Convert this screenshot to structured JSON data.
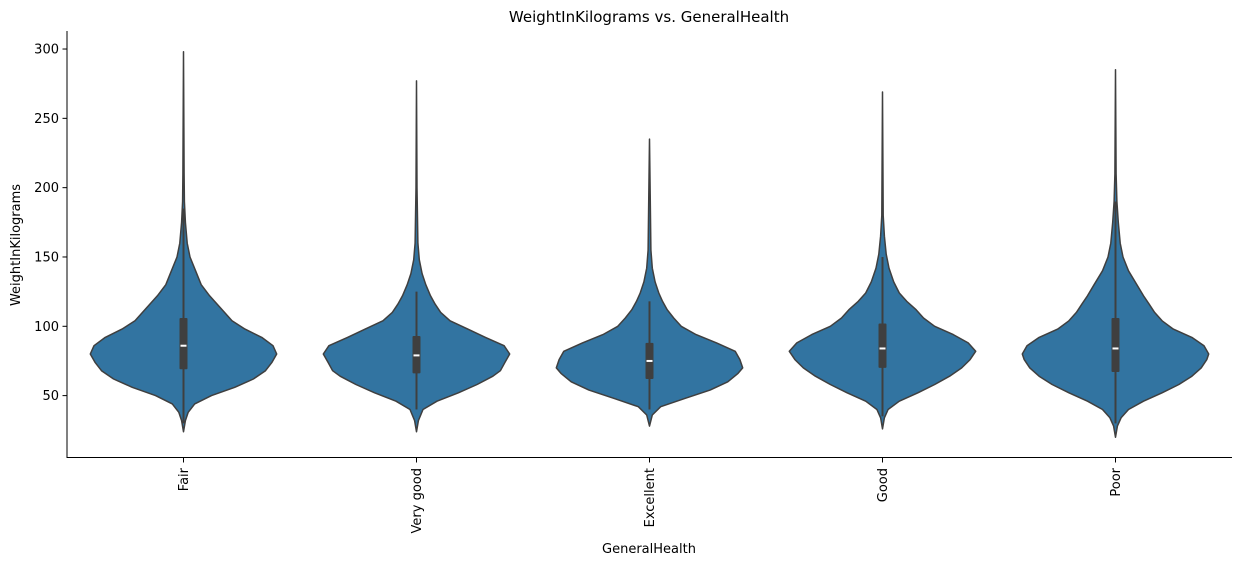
{
  "chart_data": {
    "type": "violin",
    "title": "WeightInKilograms vs. GeneralHealth",
    "xlabel": "GeneralHealth",
    "ylabel": "WeightInKilograms",
    "categories": [
      "Fair",
      "Very good",
      "Excellent",
      "Good",
      "Poor"
    ],
    "ylim": [
      5,
      313
    ],
    "yticks": [
      50,
      100,
      150,
      200,
      250,
      300
    ],
    "yticklabels": [
      "50",
      "100",
      "150",
      "200",
      "250",
      "300"
    ],
    "grid": false,
    "color": "#3274a1",
    "edge_color": "#3f3f3f",
    "violins": [
      {
        "category": "Fair",
        "min": 24,
        "max": 298,
        "q1": 69,
        "median": 86,
        "q3": 106,
        "whisker_low": 30,
        "whisker_high": 185,
        "density": [
          [
            24,
            0
          ],
          [
            32,
            0.02
          ],
          [
            38,
            0.05
          ],
          [
            44,
            0.12
          ],
          [
            50,
            0.3
          ],
          [
            56,
            0.55
          ],
          [
            62,
            0.75
          ],
          [
            68,
            0.88
          ],
          [
            74,
            0.95
          ],
          [
            80,
            1.0
          ],
          [
            86,
            0.96
          ],
          [
            92,
            0.84
          ],
          [
            98,
            0.66
          ],
          [
            104,
            0.52
          ],
          [
            110,
            0.44
          ],
          [
            116,
            0.36
          ],
          [
            122,
            0.28
          ],
          [
            130,
            0.19
          ],
          [
            140,
            0.13
          ],
          [
            150,
            0.07
          ],
          [
            160,
            0.04
          ],
          [
            175,
            0.02
          ],
          [
            190,
            0.01
          ],
          [
            210,
            0.006
          ],
          [
            298,
            0
          ]
        ]
      },
      {
        "category": "Very good",
        "min": 24,
        "max": 277,
        "q1": 66,
        "median": 79,
        "q3": 93,
        "whisker_low": 40,
        "whisker_high": 125,
        "density": [
          [
            24,
            0
          ],
          [
            32,
            0.02
          ],
          [
            40,
            0.07
          ],
          [
            46,
            0.22
          ],
          [
            52,
            0.45
          ],
          [
            58,
            0.65
          ],
          [
            64,
            0.82
          ],
          [
            68,
            0.9
          ],
          [
            74,
            0.95
          ],
          [
            80,
            1.0
          ],
          [
            86,
            0.94
          ],
          [
            92,
            0.74
          ],
          [
            98,
            0.55
          ],
          [
            104,
            0.36
          ],
          [
            110,
            0.26
          ],
          [
            116,
            0.2
          ],
          [
            122,
            0.15
          ],
          [
            130,
            0.1
          ],
          [
            138,
            0.06
          ],
          [
            148,
            0.03
          ],
          [
            160,
            0.015
          ],
          [
            200,
            0.005
          ],
          [
            277,
            0
          ]
        ]
      },
      {
        "category": "Excellent",
        "min": 28,
        "max": 235,
        "q1": 62,
        "median": 75,
        "q3": 88,
        "whisker_low": 40,
        "whisker_high": 118,
        "density": [
          [
            28,
            0
          ],
          [
            36,
            0.03
          ],
          [
            42,
            0.12
          ],
          [
            48,
            0.38
          ],
          [
            54,
            0.65
          ],
          [
            60,
            0.84
          ],
          [
            66,
            0.95
          ],
          [
            70,
            1.0
          ],
          [
            76,
            0.97
          ],
          [
            82,
            0.92
          ],
          [
            88,
            0.72
          ],
          [
            94,
            0.5
          ],
          [
            100,
            0.34
          ],
          [
            106,
            0.26
          ],
          [
            112,
            0.19
          ],
          [
            118,
            0.14
          ],
          [
            124,
            0.1
          ],
          [
            132,
            0.06
          ],
          [
            142,
            0.03
          ],
          [
            155,
            0.015
          ],
          [
            235,
            0
          ]
        ]
      },
      {
        "category": "Good",
        "min": 26,
        "max": 269,
        "q1": 70,
        "median": 84,
        "q3": 102,
        "whisker_low": 35,
        "whisker_high": 150,
        "density": [
          [
            26,
            0
          ],
          [
            34,
            0.02
          ],
          [
            40,
            0.06
          ],
          [
            46,
            0.18
          ],
          [
            52,
            0.38
          ],
          [
            58,
            0.56
          ],
          [
            64,
            0.72
          ],
          [
            70,
            0.85
          ],
          [
            76,
            0.94
          ],
          [
            82,
            1.0
          ],
          [
            88,
            0.92
          ],
          [
            94,
            0.76
          ],
          [
            100,
            0.56
          ],
          [
            106,
            0.44
          ],
          [
            112,
            0.36
          ],
          [
            118,
            0.26
          ],
          [
            124,
            0.18
          ],
          [
            132,
            0.12
          ],
          [
            142,
            0.07
          ],
          [
            152,
            0.04
          ],
          [
            165,
            0.02
          ],
          [
            180,
            0.008
          ],
          [
            269,
            0
          ]
        ]
      },
      {
        "category": "Poor",
        "min": 20,
        "max": 285,
        "q1": 67,
        "median": 84,
        "q3": 106,
        "whisker_low": 30,
        "whisker_high": 190,
        "density": [
          [
            20,
            0
          ],
          [
            28,
            0.02
          ],
          [
            34,
            0.06
          ],
          [
            40,
            0.14
          ],
          [
            46,
            0.3
          ],
          [
            52,
            0.5
          ],
          [
            58,
            0.68
          ],
          [
            64,
            0.82
          ],
          [
            70,
            0.92
          ],
          [
            76,
            0.98
          ],
          [
            80,
            1.0
          ],
          [
            86,
            0.95
          ],
          [
            92,
            0.82
          ],
          [
            98,
            0.62
          ],
          [
            104,
            0.5
          ],
          [
            110,
            0.42
          ],
          [
            116,
            0.36
          ],
          [
            122,
            0.3
          ],
          [
            130,
            0.23
          ],
          [
            140,
            0.14
          ],
          [
            150,
            0.08
          ],
          [
            160,
            0.05
          ],
          [
            175,
            0.03
          ],
          [
            190,
            0.015
          ],
          [
            210,
            0.006
          ],
          [
            285,
            0
          ]
        ]
      }
    ]
  }
}
